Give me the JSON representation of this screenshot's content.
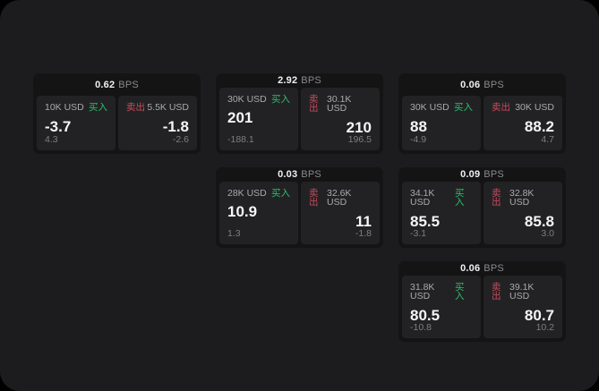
{
  "page": {
    "background": "#000000",
    "canvas_color": "#1c1c1e"
  },
  "labels": {
    "buy": "买入",
    "sell": "卖出",
    "bps_suffix": "BPS"
  },
  "colors": {
    "buy_green": "#2ebd6e",
    "sell_red": "#c74b5c",
    "card_bg": "#141415",
    "panel_bg": "#222224"
  },
  "cards": [
    {
      "bps": "0.62",
      "buy": {
        "size": "10K USD",
        "price": "-3.7",
        "change": "4.3"
      },
      "sell": {
        "size": "5.5K USD",
        "price": "-1.8",
        "change": "-2.6"
      }
    },
    {
      "bps": "2.92",
      "buy": {
        "size": "30K USD",
        "price": "201",
        "change": "-188.1"
      },
      "sell": {
        "size": "30.1K USD",
        "price": "210",
        "change": "196.5"
      }
    },
    {
      "bps": "0.06",
      "buy": {
        "size": "30K USD",
        "price": "88",
        "change": "-4.9"
      },
      "sell": {
        "size": "30K USD",
        "price": "88.2",
        "change": "4.7"
      }
    },
    {
      "bps": "0.03",
      "buy": {
        "size": "28K USD",
        "price": "10.9",
        "change": "1.3"
      },
      "sell": {
        "size": "32.6K USD",
        "price": "11",
        "change": "-1.8"
      }
    },
    {
      "bps": "0.09",
      "buy": {
        "size": "34.1K USD",
        "price": "85.5",
        "change": "-3.1"
      },
      "sell": {
        "size": "32.8K USD",
        "price": "85.8",
        "change": "3.0"
      }
    },
    {
      "bps": "0.06",
      "buy": {
        "size": "31.8K USD",
        "price": "80.5",
        "change": "-10.8"
      },
      "sell": {
        "size": "39.1K USD",
        "price": "80.7",
        "change": "10.2"
      }
    }
  ]
}
